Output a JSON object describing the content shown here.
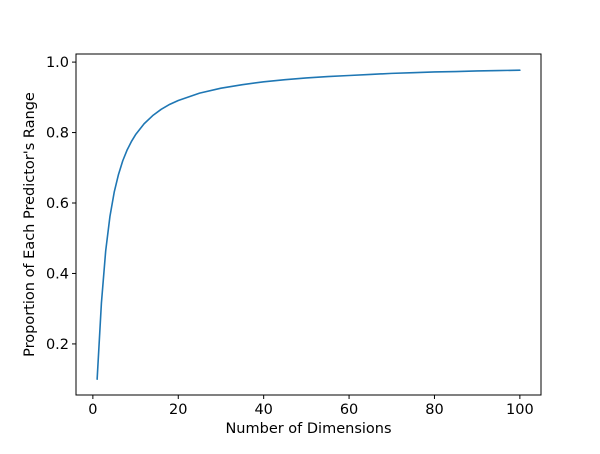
{
  "chart_data": {
    "type": "line",
    "title": "",
    "xlabel": "Number of Dimensions",
    "ylabel": "Proportion of Each Predictor's Range",
    "xlim": [
      -3.95,
      104.95
    ],
    "ylim": [
      0.055,
      1.023
    ],
    "xticks": [
      0,
      20,
      40,
      60,
      80,
      100
    ],
    "xtick_labels": [
      "0",
      "20",
      "40",
      "60",
      "80",
      "100"
    ],
    "yticks": [
      0.2,
      0.4,
      0.6,
      0.8,
      1.0
    ],
    "ytick_labels": [
      "0.2",
      "0.4",
      "0.6",
      "0.8",
      "1.0"
    ],
    "grid": false,
    "legend": "none",
    "series": [
      {
        "color": "#1f77b4",
        "x": [
          1,
          2,
          3,
          4,
          5,
          6,
          7,
          8,
          9,
          10,
          12,
          14,
          16,
          18,
          20,
          25,
          30,
          35,
          40,
          45,
          50,
          55,
          60,
          65,
          70,
          75,
          80,
          85,
          90,
          95,
          100
        ],
        "values": [
          0.1,
          0.316,
          0.464,
          0.562,
          0.631,
          0.681,
          0.72,
          0.75,
          0.774,
          0.794,
          0.825,
          0.848,
          0.866,
          0.88,
          0.891,
          0.912,
          0.926,
          0.936,
          0.944,
          0.95,
          0.955,
          0.959,
          0.962,
          0.965,
          0.968,
          0.97,
          0.972,
          0.973,
          0.975,
          0.976,
          0.977
        ]
      }
    ]
  }
}
